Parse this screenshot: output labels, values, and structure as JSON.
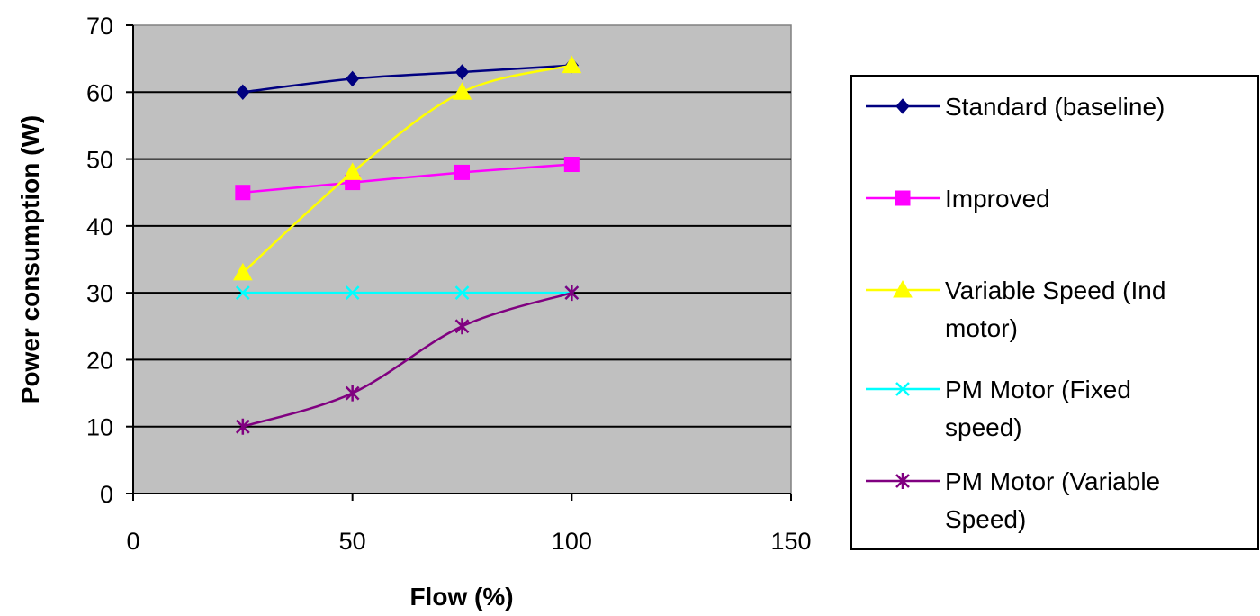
{
  "chart_data": {
    "type": "line",
    "title": "",
    "xlabel": "Flow (%)",
    "ylabel": "Power consumption (W)",
    "xlim": [
      0,
      150
    ],
    "ylim": [
      0,
      70
    ],
    "x_ticks": [
      "0",
      "50",
      "100",
      "150"
    ],
    "y_ticks": [
      "0",
      "10",
      "20",
      "30",
      "40",
      "50",
      "60",
      "70"
    ],
    "grid": "horizontal major gridlines",
    "plot_background": "#c0c0c0",
    "legend_position": "right",
    "x": [
      25,
      50,
      75,
      100
    ],
    "series": [
      {
        "name": "Standard (baseline)",
        "legend_lines": [
          "Standard (baseline)"
        ],
        "color": "#000080",
        "marker": "diamond",
        "values": [
          60,
          62,
          63,
          64
        ]
      },
      {
        "name": "Improved",
        "legend_lines": [
          "Improved"
        ],
        "color": "#ff00ff",
        "marker": "square",
        "values": [
          45,
          46.5,
          48,
          49.2
        ]
      },
      {
        "name": "Variable Speed (Ind motor)",
        "legend_lines": [
          "Variable Speed (Ind",
          "motor)"
        ],
        "color": "#ffff00",
        "marker": "triangle",
        "values": [
          33,
          48,
          60,
          64
        ]
      },
      {
        "name": "PM Motor (Fixed speed)",
        "legend_lines": [
          "PM Motor (Fixed",
          "speed)"
        ],
        "color": "#00ffff",
        "marker": "x",
        "values": [
          30,
          30,
          30,
          30
        ]
      },
      {
        "name": "PM Motor (Variable Speed)",
        "legend_lines": [
          "PM Motor (Variable",
          "Speed)"
        ],
        "color": "#800080",
        "marker": "star",
        "values": [
          10,
          15,
          25,
          30
        ]
      }
    ]
  }
}
